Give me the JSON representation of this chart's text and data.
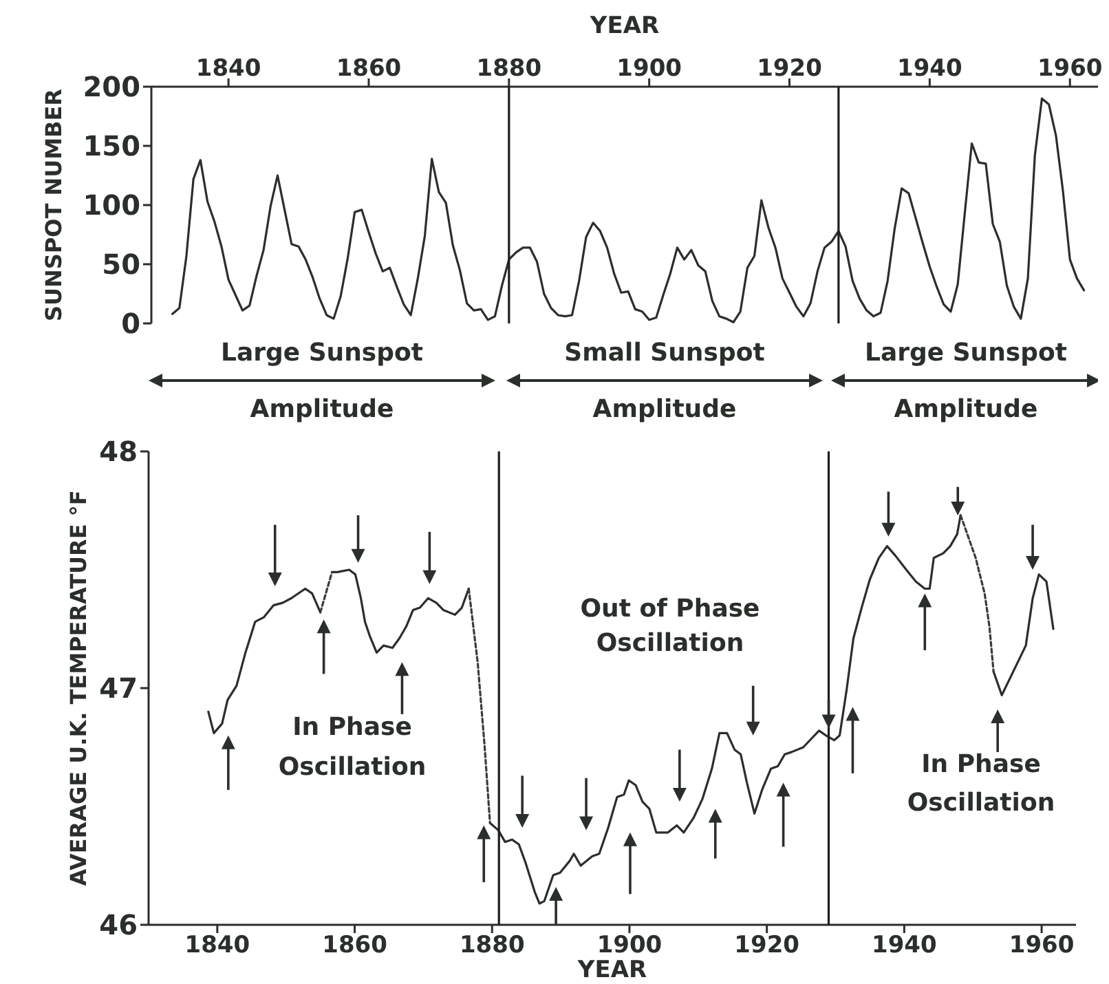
{
  "chart_data": [
    {
      "type": "line",
      "xlabel": "YEAR",
      "ylabel": "SUNSPOT NUMBER",
      "xlim": [
        1829,
        1964
      ],
      "xticks": [
        1840,
        1860,
        1880,
        1900,
        1920,
        1940,
        1960
      ],
      "ylim": [
        0,
        200
      ],
      "yticks": [
        0,
        50,
        100,
        150,
        200
      ],
      "marker": "none",
      "line_style": "solid",
      "ref_lines": [
        {
          "axis": "x",
          "value": 1880,
          "color": "#1e1e1e"
        },
        {
          "axis": "x",
          "value": 1927,
          "color": "#1e1e1e"
        }
      ],
      "annotations": [
        "Large Sunspot\nAmplitude",
        "Small Sunspot\nAmplitude",
        "Large Sunspot\nAmplitude"
      ],
      "series": [
        {
          "color": "#2b2f2b",
          "x": [
            1832,
            1833,
            1834,
            1835,
            1836,
            1837,
            1838,
            1839,
            1840,
            1841,
            1842,
            1843,
            1844,
            1845,
            1846,
            1847,
            1848,
            1849,
            1850,
            1851,
            1852,
            1853,
            1854,
            1855,
            1856,
            1857,
            1858,
            1859,
            1860,
            1861,
            1862,
            1863,
            1864,
            1865,
            1866,
            1867,
            1868,
            1869,
            1870,
            1871,
            1872,
            1873,
            1874,
            1875,
            1876,
            1877,
            1878,
            1879,
            1880,
            1881,
            1882,
            1883,
            1884,
            1885,
            1886,
            1887,
            1888,
            1889,
            1890,
            1891,
            1892,
            1893,
            1894,
            1895,
            1896,
            1897,
            1898,
            1899,
            1900,
            1901,
            1902,
            1903,
            1904,
            1905,
            1906,
            1907,
            1908,
            1909,
            1910,
            1911,
            1912,
            1913,
            1914,
            1915,
            1916,
            1917,
            1918,
            1919,
            1920,
            1921,
            1922,
            1923,
            1924,
            1925,
            1926,
            1927,
            1928,
            1929,
            1930,
            1931,
            1932,
            1933,
            1934,
            1935,
            1936,
            1937,
            1938,
            1939,
            1940,
            1941,
            1942,
            1943,
            1944,
            1945,
            1946,
            1947,
            1948,
            1949,
            1950,
            1951,
            1952,
            1953,
            1954,
            1955,
            1956,
            1957,
            1958,
            1959,
            1960,
            1961,
            1962
          ],
          "values": [
            8,
            13,
            57,
            122,
            138,
            103,
            86,
            65,
            37,
            24,
            11,
            15,
            40,
            62,
            99,
            125,
            96,
            67,
            65,
            54,
            39,
            21,
            7,
            4,
            23,
            55,
            94,
            96,
            77,
            59,
            44,
            47,
            31,
            16,
            7,
            38,
            74,
            139,
            111,
            102,
            66,
            45,
            17,
            11,
            12,
            3,
            6,
            32,
            54,
            60,
            64,
            64,
            52,
            25,
            13,
            7,
            6,
            7,
            36,
            73,
            85,
            78,
            64,
            42,
            26,
            27,
            12,
            10,
            3,
            5,
            24,
            42,
            64,
            54,
            62,
            49,
            44,
            19,
            6,
            4,
            1,
            10,
            47,
            57,
            104,
            81,
            64,
            38,
            26,
            14,
            6,
            17,
            44,
            64,
            69,
            78,
            65,
            36,
            21,
            11,
            6,
            9,
            36,
            80,
            114,
            110,
            89,
            68,
            48,
            31,
            16,
            10,
            33,
            93,
            152,
            136,
            135,
            84,
            69,
            32,
            14,
            4,
            38,
            142,
            190,
            185,
            159,
            112,
            54,
            38,
            28
          ]
        }
      ]
    },
    {
      "type": "line",
      "xlabel": "YEAR",
      "ylabel": "AVERAGE U.K. TEMPERATURE °F",
      "xlim": [
        1830,
        1965
      ],
      "xticks": [
        1840,
        1860,
        1880,
        1900,
        1920,
        1940,
        1960
      ],
      "ylim": [
        46,
        48
      ],
      "yticks": [
        46,
        47,
        48
      ],
      "marker": "none",
      "ref_lines": [
        {
          "axis": "x",
          "value": 1881,
          "color": "#1e1e1e"
        },
        {
          "axis": "x",
          "value": 1929,
          "color": "#1e1e1e"
        }
      ],
      "annotations": [
        "In Phase\nOscillation",
        "Out of Phase\nOscillation",
        "In Phase\nOscillation"
      ],
      "series": [
        {
          "color": "#2b2f2b",
          "line_style": "solid",
          "x": [
            1838.7,
            1839.5,
            1840.7,
            1841.5,
            1842.8,
            1844.1,
            1845.5,
            1846.8,
            1848.2,
            1849.5,
            1850.8,
            1852.8,
            1853.8,
            1855.0,
            1855.8,
            1856.7,
            1857.5,
            1859.2,
            1860.1,
            1860.9,
            1861.5,
            1862.2,
            1863.2,
            1864.2,
            1865.5,
            1866.5,
            1867.5,
            1868.5,
            1869.5,
            1870.7,
            1871.9,
            1872.9,
            1874.6,
            1875.6,
            1876.6,
            1878.0,
            1879.7,
            1880.9,
            1881.9,
            1882.9,
            1883.9,
            1884.9,
            1886.2,
            1886.9,
            1887.6,
            1888.9,
            1889.9,
            1891.3,
            1891.9,
            1892.9,
            1894.6,
            1895.6,
            1896.9,
            1898.2,
            1899.2,
            1899.9,
            1900.9,
            1901.9,
            1902.9,
            1903.9,
            1905.6,
            1906.9,
            1907.9,
            1909.3,
            1910.6,
            1912.0,
            1913.1,
            1914.2,
            1915.3,
            1916.2,
            1917.1,
            1918.2,
            1919.3,
            1920.6,
            1921.6,
            1922.6,
            1923.6,
            1925.3,
            1926.6,
            1927.6,
            1928.6,
            1929.8,
            1930.6,
            1931.6,
            1932.6,
            1933.8,
            1935.0,
            1936.3,
            1937.5,
            1938.7,
            1940.3,
            1941.7,
            1943.0,
            1943.7,
            1944.3,
            1945.7,
            1946.7,
            1947.7,
            1948.2,
            1950.5,
            1953.0,
            1954.2,
            1955.7,
            1957.7,
            1958.7,
            1959.6,
            1960.7,
            1961.7
          ],
          "values": [
            46.9,
            46.81,
            46.85,
            46.95,
            47.01,
            47.15,
            47.28,
            47.3,
            47.35,
            47.36,
            47.38,
            47.42,
            47.4,
            47.32,
            null,
            47.49,
            47.49,
            47.5,
            47.48,
            47.38,
            47.28,
            47.22,
            47.15,
            47.18,
            47.17,
            47.21,
            47.26,
            47.33,
            47.34,
            47.38,
            47.36,
            47.33,
            47.31,
            47.34,
            47.42,
            null,
            46.43,
            46.4,
            46.35,
            46.36,
            46.34,
            46.26,
            46.14,
            46.09,
            46.1,
            46.21,
            46.22,
            46.27,
            46.3,
            46.25,
            46.29,
            46.3,
            46.41,
            46.54,
            46.55,
            46.61,
            46.59,
            46.52,
            46.49,
            46.39,
            46.39,
            46.42,
            46.39,
            46.45,
            46.53,
            46.66,
            46.81,
            46.81,
            46.74,
            46.72,
            46.6,
            46.47,
            46.57,
            46.66,
            46.67,
            46.72,
            46.73,
            46.75,
            46.79,
            46.82,
            46.8,
            46.78,
            46.8,
            46.99,
            47.21,
            47.34,
            47.46,
            47.55,
            47.6,
            47.56,
            47.5,
            47.45,
            47.42,
            47.42,
            47.55,
            47.57,
            47.6,
            47.65,
            47.73,
            null,
            47.07,
            46.97,
            47.06,
            47.18,
            47.38,
            47.48,
            47.45,
            47.25
          ]
        },
        {
          "color": "#3a3d3a",
          "line_style": "dotted",
          "x": [
            1855.0,
            1855.8,
            1856.7
          ],
          "values": [
            47.32,
            47.4,
            47.49
          ]
        },
        {
          "color": "#3a3d3a",
          "line_style": "dotted",
          "x": [
            1876.6,
            1877.9,
            1878.9,
            1879.7
          ],
          "values": [
            47.42,
            47.11,
            46.76,
            46.43
          ]
        },
        {
          "color": "#3a3d3a",
          "line_style": "dotted",
          "x": [
            1948.2,
            1948.7,
            1950.4,
            1951.7,
            1952.4,
            1953.0
          ],
          "values": [
            47.73,
            47.69,
            47.55,
            47.4,
            47.26,
            47.07
          ]
        }
      ]
    }
  ]
}
